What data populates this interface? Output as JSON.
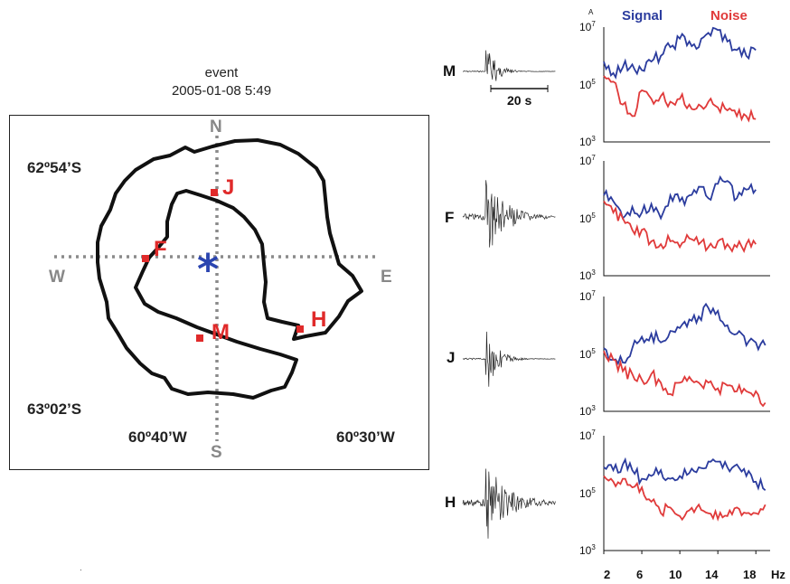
{
  "event": {
    "label": "event",
    "datetime": "2005-01-08 5:49"
  },
  "map": {
    "lat_top": "62º54’S",
    "lat_bottom": "63º02’S",
    "lon_left": "60º40’W",
    "lon_right": "60º30’W",
    "compass": {
      "n": "N",
      "s": "S",
      "e": "E",
      "w": "W"
    },
    "epicenter_symbol": "*",
    "stations": [
      "J",
      "F",
      "M",
      "H"
    ],
    "colors": {
      "station": "#e02a2a",
      "epicenter": "#2b45b0",
      "outline": "#111111",
      "axes": "#8a8a8a"
    }
  },
  "traces": {
    "labels": [
      "M",
      "F",
      "J",
      "H"
    ],
    "scale_bar": "20 s"
  },
  "spectra": {
    "legend": {
      "signal": "Signal",
      "noise": "Noise"
    },
    "y_unit": "A",
    "y_ticks": {
      "base": "10",
      "top_exp": "7",
      "mid_exp": "5",
      "bottom_exp": "3"
    },
    "x_ticks": [
      "2",
      "6",
      "10",
      "14",
      "18"
    ],
    "x_unit": "Hz",
    "colors": {
      "signal": "#2b3c9e",
      "noise": "#e03a3a"
    }
  },
  "chart_data": {
    "type": "line",
    "xlim": [
      2,
      19.5
    ],
    "ylim_log10": [
      3,
      7
    ],
    "y_scale": "log",
    "xlabel": "Hz",
    "ylabel": "A",
    "panels": [
      {
        "station": "M",
        "series": [
          {
            "name": "Signal",
            "x": [
              2,
              3,
              4,
              5,
              6,
              7,
              8,
              9,
              10,
              11,
              12,
              13,
              14,
              15,
              16,
              17,
              18
            ],
            "y_log10": [
              5.8,
              5.4,
              5.6,
              5.7,
              5.5,
              5.8,
              6.0,
              6.3,
              6.6,
              6.5,
              6.3,
              6.8,
              6.9,
              6.5,
              6.2,
              6.0,
              6.2
            ]
          },
          {
            "name": "Noise",
            "x": [
              2,
              3,
              4,
              5,
              6,
              7,
              8,
              9,
              10,
              11,
              12,
              13,
              14,
              15,
              16,
              17,
              18
            ],
            "y_log10": [
              5.3,
              5.1,
              4.3,
              3.9,
              4.8,
              4.5,
              4.6,
              4.4,
              4.5,
              4.3,
              4.3,
              4.4,
              4.2,
              4.1,
              3.9,
              3.9,
              3.8
            ]
          }
        ]
      },
      {
        "station": "F",
        "series": [
          {
            "name": "Signal",
            "x": [
              2,
              3,
              4,
              5,
              6,
              7,
              8,
              9,
              10,
              11,
              12,
              13,
              14,
              15,
              16,
              17,
              18
            ],
            "y_log10": [
              5.8,
              5.6,
              5.0,
              5.4,
              5.2,
              5.5,
              5.0,
              5.8,
              5.6,
              5.8,
              6.1,
              5.7,
              6.2,
              6.3,
              5.7,
              6.0,
              6.0
            ]
          },
          {
            "name": "Noise",
            "x": [
              2,
              3,
              4,
              5,
              6,
              7,
              8,
              9,
              10,
              11,
              12,
              13,
              14,
              15,
              16,
              17,
              18
            ],
            "y_log10": [
              5.6,
              5.2,
              5.0,
              4.6,
              4.6,
              4.2,
              4.1,
              4.2,
              4.0,
              4.3,
              4.1,
              4.0,
              4.2,
              4.1,
              4.0,
              4.1,
              4.1
            ]
          }
        ]
      },
      {
        "station": "J",
        "series": [
          {
            "name": "Signal",
            "x": [
              2,
              3,
              4,
              5,
              6,
              7,
              8,
              9,
              10,
              11,
              12,
              13,
              14,
              15,
              16,
              17,
              18,
              19
            ],
            "y_log10": [
              5.2,
              4.8,
              4.7,
              5.2,
              5.6,
              5.7,
              5.4,
              5.8,
              5.9,
              6.2,
              6.3,
              6.6,
              6.5,
              6.0,
              5.7,
              5.3,
              5.4,
              5.3
            ]
          },
          {
            "name": "Noise",
            "x": [
              2,
              3,
              4,
              5,
              6,
              7,
              8,
              9,
              10,
              11,
              12,
              13,
              14,
              15,
              16,
              17,
              18,
              19
            ],
            "y_log10": [
              5.1,
              4.8,
              4.4,
              4.3,
              4.1,
              4.3,
              4.0,
              3.6,
              4.0,
              4.2,
              4.0,
              4.0,
              3.8,
              3.9,
              3.7,
              3.7,
              3.7,
              3.3
            ]
          }
        ]
      },
      {
        "station": "H",
        "series": [
          {
            "name": "Signal",
            "x": [
              2,
              3,
              4,
              5,
              6,
              7,
              8,
              9,
              10,
              11,
              12,
              13,
              14,
              15,
              16,
              17,
              18,
              19
            ],
            "y_log10": [
              5.9,
              5.8,
              6.0,
              5.8,
              5.5,
              5.6,
              5.8,
              5.5,
              5.6,
              5.7,
              5.9,
              6.1,
              6.1,
              5.9,
              6.0,
              5.6,
              5.4,
              5.1
            ]
          },
          {
            "name": "Noise",
            "x": [
              2,
              3,
              4,
              5,
              6,
              7,
              8,
              9,
              10,
              11,
              12,
              13,
              14,
              15,
              16,
              17,
              18,
              19
            ],
            "y_log10": [
              5.6,
              5.4,
              5.5,
              5.2,
              5.2,
              4.7,
              4.3,
              4.5,
              4.2,
              4.4,
              4.6,
              4.3,
              4.1,
              4.2,
              4.5,
              4.3,
              4.3,
              4.6
            ]
          }
        ]
      }
    ]
  }
}
